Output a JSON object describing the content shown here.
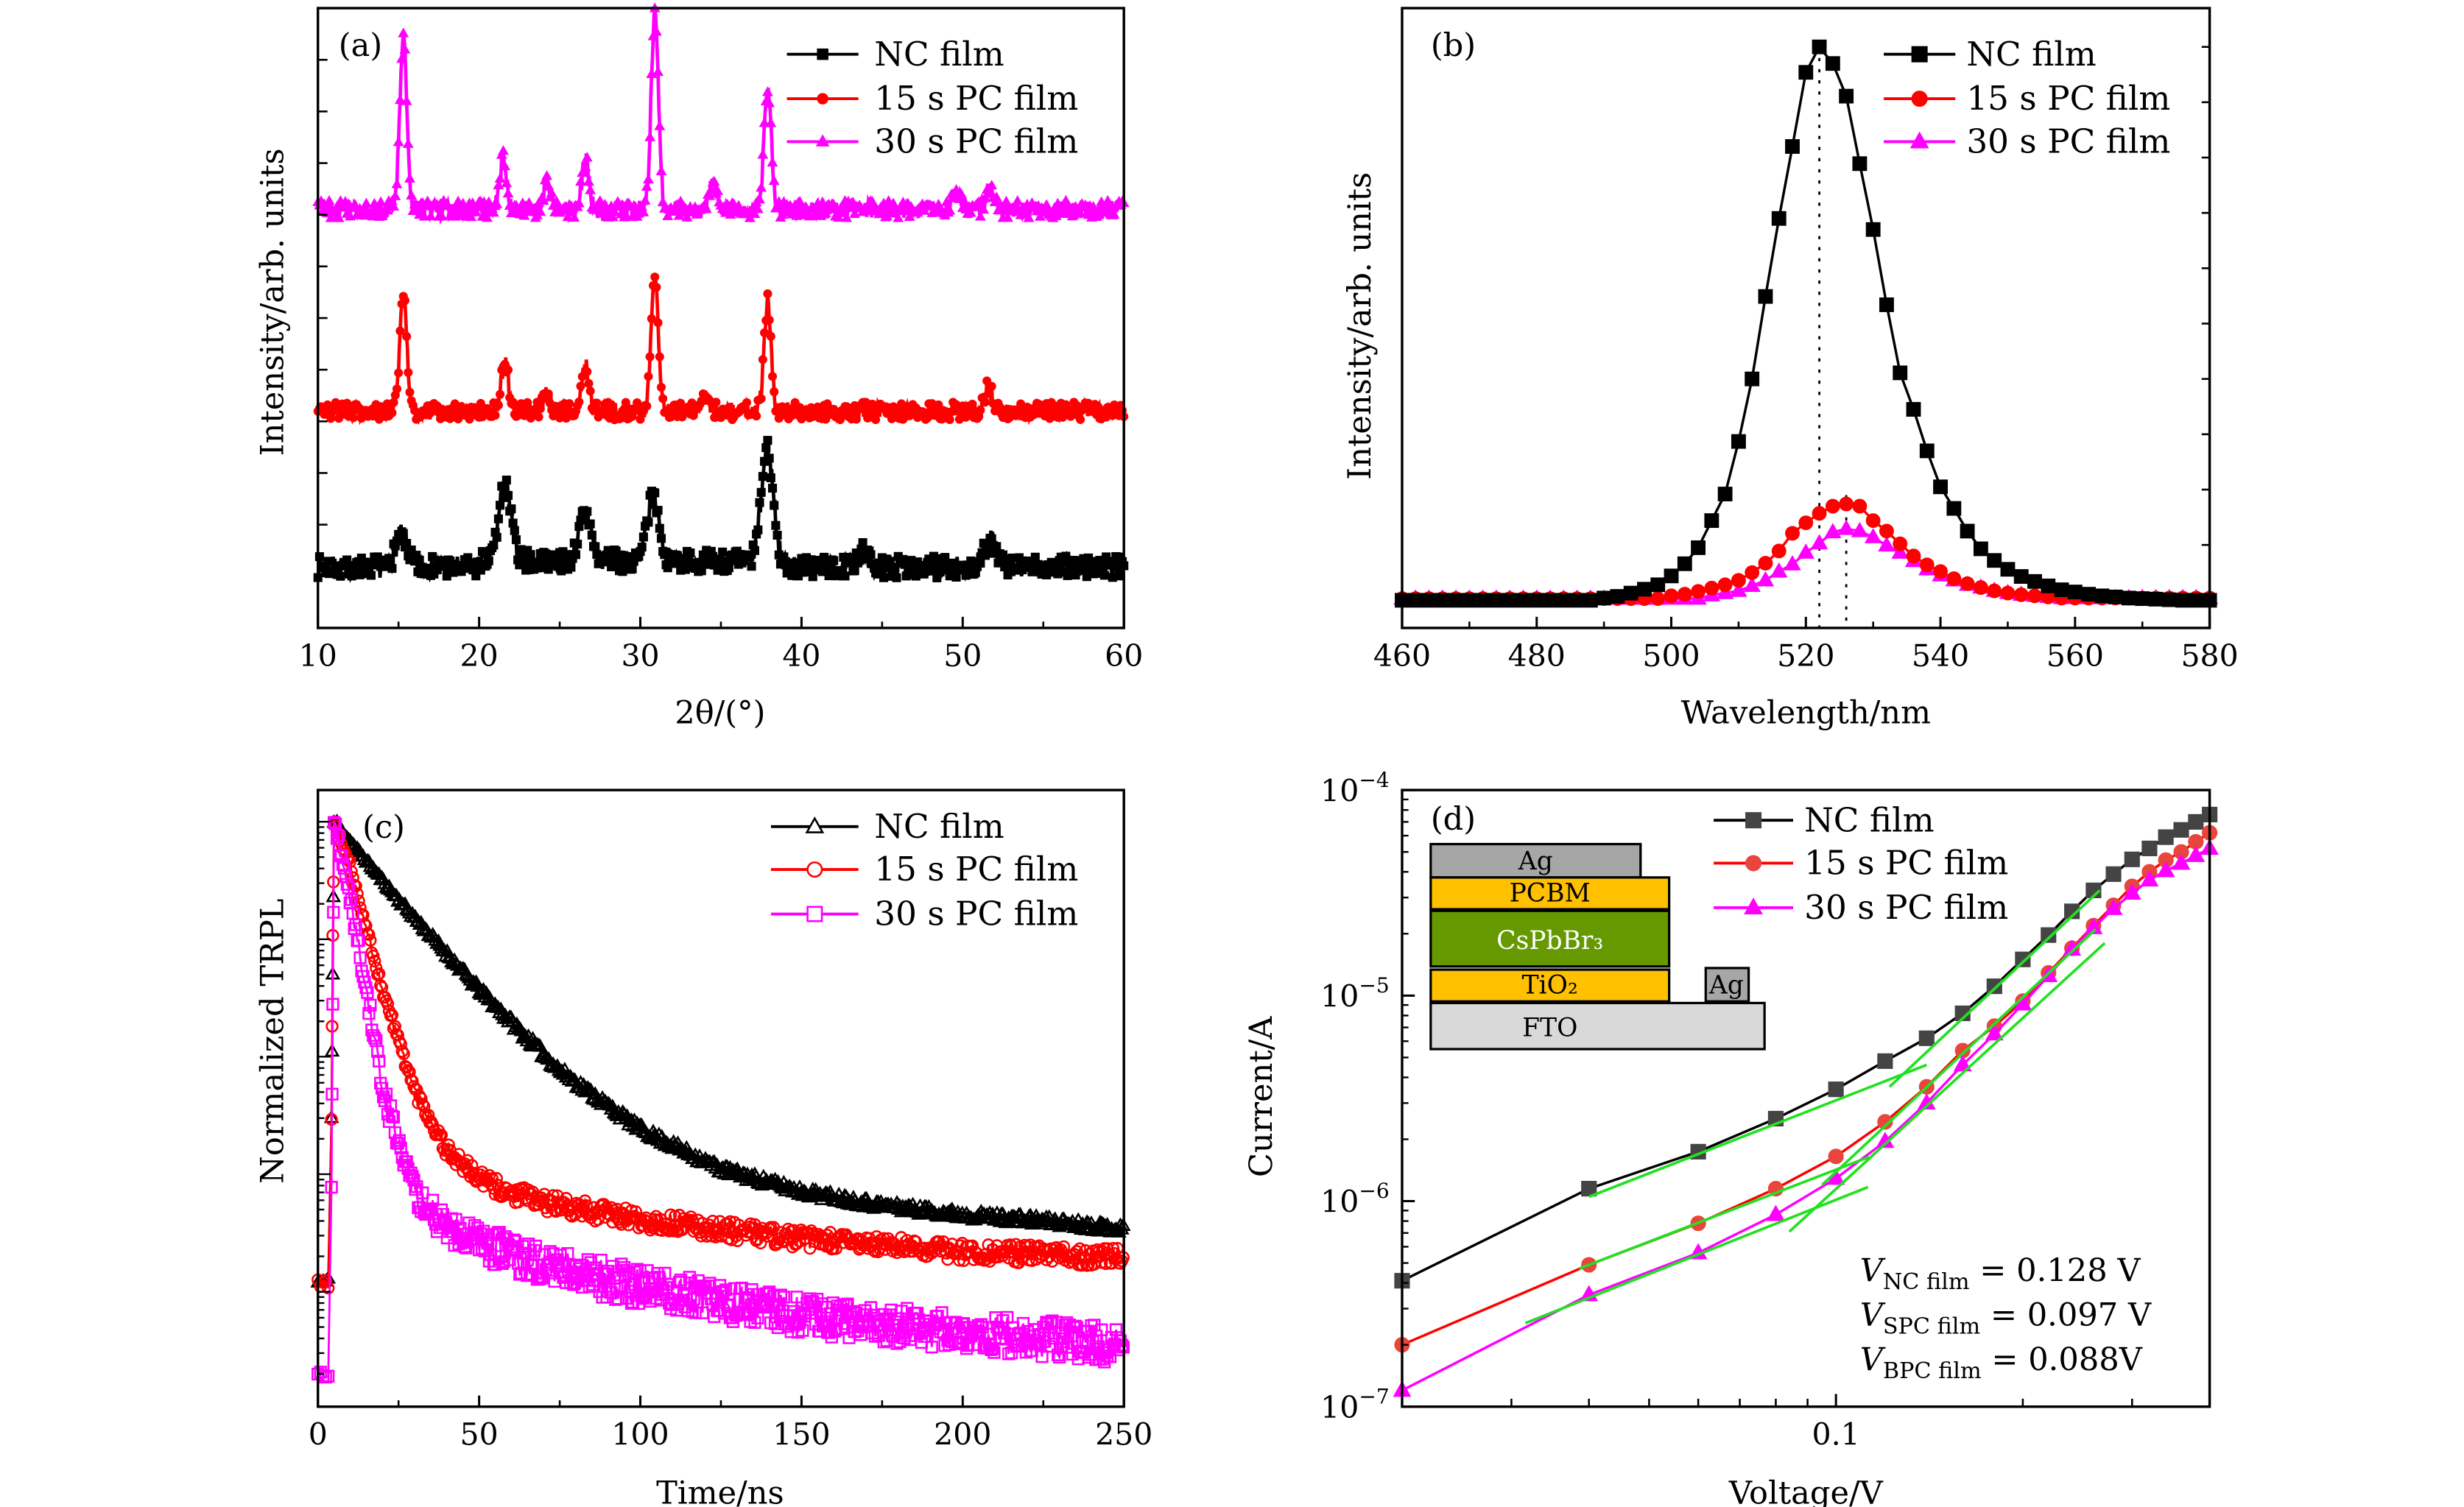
{
  "chart_data": [
    {
      "panel_label": "(a)",
      "type": "line",
      "xlabel": "2θ/(°)",
      "ylabel": "Intensity/arb. units",
      "xlim": [
        10,
        60
      ],
      "ylim": [
        0,
        12
      ],
      "x_ticks": [
        "10",
        "20",
        "30",
        "40",
        "50",
        "60"
      ],
      "y_tick_labels_shown": false,
      "grid": false,
      "legend": {
        "position": "top-right"
      },
      "series": [
        {
          "name": "NC film",
          "color": "#000000",
          "marker": "square",
          "baseline": 1.18,
          "peaks": [
            {
              "x": 15.2,
              "y": 1.8
            },
            {
              "x": 21.6,
              "y": 2.62
            },
            {
              "x": 26.6,
              "y": 2.1
            },
            {
              "x": 30.8,
              "y": 2.4
            },
            {
              "x": 37.9,
              "y": 3.37
            },
            {
              "x": 43.8,
              "y": 1.45
            },
            {
              "x": 51.7,
              "y": 1.7
            }
          ]
        },
        {
          "name": "15 s PC film",
          "color": "#ff0000",
          "marker": "circle",
          "baseline": 4.2,
          "peaks": [
            {
              "x": 15.3,
              "y": 6.39
            },
            {
              "x": 21.6,
              "y": 5.18
            },
            {
              "x": 24.2,
              "y": 4.5
            },
            {
              "x": 26.6,
              "y": 5.09
            },
            {
              "x": 30.9,
              "y": 6.83
            },
            {
              "x": 34.0,
              "y": 4.5
            },
            {
              "x": 37.9,
              "y": 6.3
            },
            {
              "x": 51.6,
              "y": 4.67
            }
          ]
        },
        {
          "name": "30 s PC film",
          "color": "#ff00ff",
          "marker": "triangle",
          "baseline": 8.1,
          "peaks": [
            {
              "x": 15.3,
              "y": 11.41
            },
            {
              "x": 21.5,
              "y": 9.09
            },
            {
              "x": 24.2,
              "y": 8.6
            },
            {
              "x": 26.6,
              "y": 9.09
            },
            {
              "x": 30.9,
              "y": 11.94
            },
            {
              "x": 34.5,
              "y": 8.67
            },
            {
              "x": 37.9,
              "y": 10.44
            },
            {
              "x": 49.6,
              "y": 8.5
            },
            {
              "x": 51.7,
              "y": 8.58
            }
          ]
        }
      ]
    },
    {
      "panel_label": "(b)",
      "type": "line",
      "xlabel": "Wavelength/nm",
      "ylabel": "Intensity/arb. units",
      "xlim": [
        460,
        580
      ],
      "ylim": [
        -0.05,
        1.07
      ],
      "x_ticks": [
        "460",
        "480",
        "500",
        "520",
        "540",
        "560",
        "580"
      ],
      "y_tick_labels_shown": false,
      "grid": false,
      "legend": {
        "position": "top-right"
      },
      "x": [
        460,
        462,
        464,
        466,
        468,
        470,
        472,
        474,
        476,
        478,
        480,
        482,
        484,
        486,
        488,
        490,
        492,
        494,
        496,
        498,
        500,
        502,
        504,
        506,
        508,
        510,
        512,
        514,
        516,
        518,
        520,
        522,
        524,
        526,
        528,
        530,
        532,
        534,
        536,
        538,
        540,
        542,
        544,
        546,
        548,
        550,
        552,
        554,
        556,
        558,
        560,
        562,
        564,
        566,
        568,
        570,
        572,
        574,
        576,
        578,
        580
      ],
      "peak_markers": [
        522,
        526
      ],
      "series": [
        {
          "name": "NC film",
          "color": "#000000",
          "marker": "square",
          "values": [
            0,
            0,
            0,
            0,
            0,
            0,
            0,
            0,
            0,
            0,
            0,
            0,
            0,
            0,
            0,
            0.004,
            0.007,
            0.013,
            0.02,
            0.028,
            0.044,
            0.066,
            0.095,
            0.144,
            0.192,
            0.287,
            0.4,
            0.549,
            0.69,
            0.82,
            0.954,
            1.0,
            0.97,
            0.911,
            0.789,
            0.67,
            0.534,
            0.411,
            0.345,
            0.27,
            0.205,
            0.166,
            0.125,
            0.093,
            0.072,
            0.056,
            0.043,
            0.034,
            0.026,
            0.019,
            0.015,
            0.011,
            0.008,
            0.006,
            0.004,
            0.003,
            0.002,
            0.001,
            0,
            0,
            0
          ]
        },
        {
          "name": "15 s PC film",
          "color": "#ff0000",
          "marker": "circle",
          "values": [
            0.003,
            0.003,
            0.003,
            0.003,
            0.003,
            0.003,
            0.003,
            0.003,
            0.003,
            0.003,
            0.003,
            0.003,
            0.003,
            0.003,
            0.003,
            0.003,
            0.003,
            0.003,
            0.003,
            0.003,
            0.008,
            0.011,
            0.016,
            0.022,
            0.028,
            0.036,
            0.05,
            0.067,
            0.089,
            0.121,
            0.14,
            0.157,
            0.17,
            0.174,
            0.17,
            0.144,
            0.125,
            0.102,
            0.08,
            0.064,
            0.052,
            0.039,
            0.03,
            0.023,
            0.017,
            0.013,
            0.01,
            0.008,
            0.006,
            0.004,
            0.004,
            0.004,
            0.004,
            0.004,
            0.004,
            0.004,
            0.004,
            0.004,
            0.004,
            0.004,
            0.004
          ]
        },
        {
          "name": "30 s PC film",
          "color": "#ff00ff",
          "marker": "triangle",
          "values": [
            0.003,
            0.003,
            0.003,
            0.003,
            0.003,
            0.003,
            0.003,
            0.003,
            0.003,
            0.003,
            0.003,
            0.003,
            0.003,
            0.003,
            0.003,
            0.003,
            0.003,
            0.003,
            0.003,
            0.003,
            0.003,
            0.003,
            0.003,
            0.009,
            0.013,
            0.017,
            0.026,
            0.036,
            0.052,
            0.065,
            0.086,
            0.103,
            0.123,
            0.129,
            0.125,
            0.114,
            0.099,
            0.086,
            0.071,
            0.056,
            0.045,
            0.036,
            0.028,
            0.023,
            0.017,
            0.013,
            0.01,
            0.008,
            0.006,
            0.004,
            0.004,
            0.004,
            0.004,
            0.004,
            0.004,
            0.004,
            0.004,
            0.004,
            0.004,
            0.004,
            0.004
          ]
        }
      ]
    },
    {
      "panel_label": "(c)",
      "type": "scatter",
      "xlabel": "Time/ns",
      "ylabel": "Normalized TRPL",
      "xlim": [
        0,
        250
      ],
      "ylim": [
        1.05e-05,
        1.86
      ],
      "y_scale": "log",
      "x_ticks": [
        "0",
        "50",
        "100",
        "150",
        "200",
        "250"
      ],
      "y_tick_labels_shown": false,
      "grid": false,
      "legend": {
        "position": "top-right"
      },
      "series": [
        {
          "name": "NC film",
          "color": "#000000",
          "marker": "open-triangle",
          "points": [
            [
              0,
              0.00012
            ],
            [
              3.5,
              0.00012
            ],
            [
              4.2,
              0.003
            ],
            [
              4.6,
              0.05
            ],
            [
              5,
              1
            ],
            [
              25,
              0.216
            ],
            [
              50,
              0.037
            ],
            [
              75,
              0.0076
            ],
            [
              100,
              0.0024
            ],
            [
              125,
              0.0011
            ],
            [
              150,
              0.00071
            ],
            [
              175,
              0.00054
            ],
            [
              200,
              0.00045
            ],
            [
              225,
              0.0004
            ],
            [
              250,
              0.00034
            ]
          ]
        },
        {
          "name": "15 s PC film",
          "color": "#ff0000",
          "marker": "open-circle",
          "points": [
            [
              0,
              0.00012
            ],
            [
              3.5,
              0.00012
            ],
            [
              4.2,
              0.003
            ],
            [
              4.6,
              0.1
            ],
            [
              5,
              1
            ],
            [
              10,
              0.42
            ],
            [
              20,
              0.037
            ],
            [
              30,
              0.0052
            ],
            [
              40,
              0.0016
            ],
            [
              50,
              0.00091
            ],
            [
              60,
              0.00068
            ],
            [
              75,
              0.00054
            ],
            [
              100,
              0.00041
            ],
            [
              150,
              0.00028
            ],
            [
              200,
              0.00022
            ],
            [
              250,
              0.000195
            ]
          ]
        },
        {
          "name": "30 s PC film",
          "color": "#ff00ff",
          "marker": "open-square",
          "points": [
            [
              0,
              2e-05
            ],
            [
              3.5,
              2e-05
            ],
            [
              4.2,
              0.0008
            ],
            [
              4.6,
              0.03
            ],
            [
              5,
              1
            ],
            [
              10,
              0.216
            ],
            [
              15,
              0.037
            ],
            [
              20,
              0.0058
            ],
            [
              25,
              0.0017
            ],
            [
              30,
              0.00068
            ],
            [
              40,
              0.00035
            ],
            [
              50,
              0.00026
            ],
            [
              75,
              0.000155
            ],
            [
              100,
              0.00011
            ],
            [
              150,
              6.2e-05
            ],
            [
              200,
              4.5e-05
            ],
            [
              250,
              3.5e-05
            ]
          ]
        }
      ]
    },
    {
      "panel_label": "(d)",
      "type": "line",
      "xlabel": "Voltage/V",
      "ylabel": "Current/A",
      "x_scale": "log",
      "y_scale": "log",
      "xlim": [
        0.02,
        0.4
      ],
      "ylim": [
        1e-07,
        0.0001
      ],
      "x_ticks": [
        {
          "value": 0.1,
          "label": "0.1"
        }
      ],
      "y_ticks": [
        {
          "value": 1e-07,
          "base": "10",
          "exp": "−7"
        },
        {
          "value": 1e-06,
          "base": "10",
          "exp": "−6"
        },
        {
          "value": 1e-05,
          "base": "10",
          "exp": "−5"
        },
        {
          "value": 0.0001,
          "base": "10",
          "exp": "−4"
        }
      ],
      "grid": false,
      "legend": {
        "position": "top-right"
      },
      "x": [
        0.02,
        0.04,
        0.06,
        0.08,
        0.1,
        0.12,
        0.14,
        0.16,
        0.18,
        0.2,
        0.22,
        0.24,
        0.26,
        0.28,
        0.3,
        0.32,
        0.34,
        0.36,
        0.38,
        0.4
      ],
      "series": [
        {
          "name": "NC film",
          "color": "#000000",
          "marker_color": "#444444",
          "marker": "square",
          "values": [
            4.1e-07,
            1.15e-06,
            1.74e-06,
            2.52e-06,
            3.5e-06,
            4.8e-06,
            6.2e-06,
            8.2e-06,
            1.11e-05,
            1.5e-05,
            1.97e-05,
            2.57e-05,
            3.25e-05,
            3.9e-05,
            4.6e-05,
            5.2e-05,
            5.9e-05,
            6.4e-05,
            7e-05,
            7.6e-05
          ]
        },
        {
          "name": "15 s PC film",
          "color": "#ff0000",
          "marker_color": "#e8453c",
          "marker": "circle",
          "values": [
            2e-07,
            4.9e-07,
            7.8e-07,
            1.15e-06,
            1.65e-06,
            2.43e-06,
            3.6e-06,
            5.4e-06,
            7.1e-06,
            9.4e-06,
            1.29e-05,
            1.7e-05,
            2.19e-05,
            2.75e-05,
            3.4e-05,
            4e-05,
            4.56e-05,
            5e-05,
            5.6e-05,
            6.2e-05
          ]
        },
        {
          "name": "30 s PC film",
          "color": "#ff00ff",
          "marker_color": "#ff00ff",
          "marker": "triangle",
          "values": [
            1.2e-07,
            3.5e-07,
            5.6e-07,
            8.6e-07,
            1.29e-06,
            1.95e-06,
            3e-06,
            4.6e-06,
            6.5e-06,
            9.1e-06,
            1.25e-05,
            1.68e-05,
            2.14e-05,
            2.65e-05,
            3.15e-05,
            3.65e-05,
            4.05e-05,
            4.4e-05,
            4.8e-05,
            5.2e-05
          ]
        }
      ],
      "fit_lines": {
        "color": "#22e022",
        "segments": [
          {
            "x": [
              0.04,
              0.14
            ],
            "y": [
              1.05e-06,
              4.6e-06
            ]
          },
          {
            "x": [
              0.122,
              0.266
            ],
            "y": [
              3.6e-06,
              3.25e-05
            ]
          },
          {
            "x": [
              0.0386,
              0.113
            ],
            "y": [
              4.7e-07,
              1.64e-06
            ]
          },
          {
            "x": [
              0.095,
              0.262
            ],
            "y": [
              1.2e-06,
              2.1e-05
            ]
          },
          {
            "x": [
              0.0316,
              0.1126
            ],
            "y": [
              2.55e-07,
              1.17e-06
            ]
          },
          {
            "x": [
              0.0841,
              0.271
            ],
            "y": [
              7.1e-07,
              1.8e-05
            ]
          }
        ]
      },
      "annotations": [
        {
          "symbol": "V",
          "sub": "NC film",
          "value": " = 0.128 V"
        },
        {
          "symbol": "V",
          "sub": "SPC film",
          "value": " = 0.097 V"
        },
        {
          "symbol": "V",
          "sub": "BPC film",
          "value": " = 0.088V"
        }
      ],
      "inset": {
        "layers": {
          "ag_top": "Ag",
          "pcbm": "PCBM",
          "cspbbr3": "CsPbBr₃",
          "tio2": "TiO₂",
          "ag_side": "Ag",
          "fto": "FTO"
        },
        "colors": {
          "ag": "#a6a6a6",
          "pcbm": "#ffc000",
          "cspbbr3": "#669900",
          "tio2": "#ffc000",
          "fto": "#d9d9d9"
        }
      }
    }
  ]
}
